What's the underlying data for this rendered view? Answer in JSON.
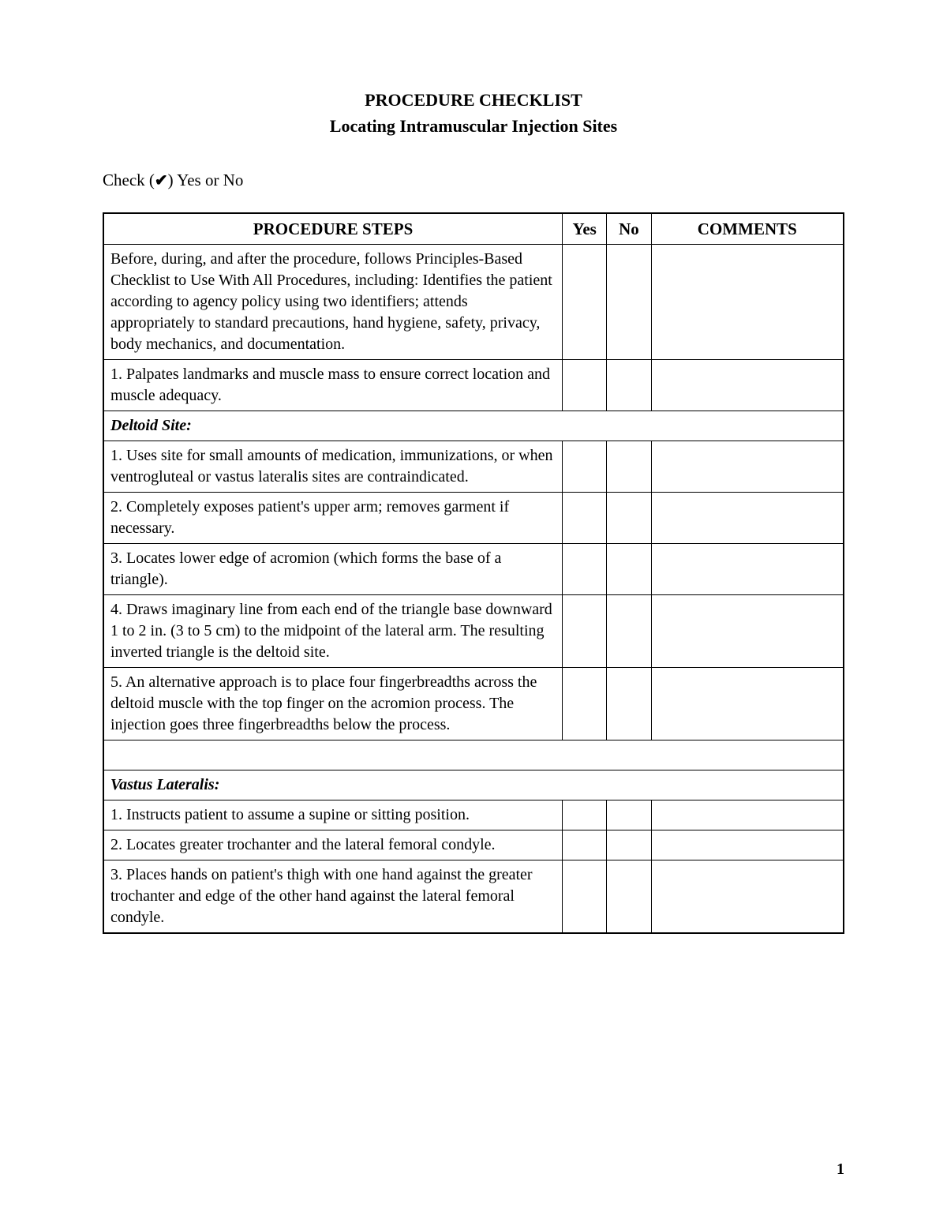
{
  "title": {
    "line1": "PROCEDURE CHECKLIST",
    "line2": "Locating Intramuscular Injection Sites"
  },
  "check_instruction": {
    "prefix": "Check (",
    "mark": "✔",
    "suffix": ") Yes or No"
  },
  "table": {
    "headers": {
      "steps": "PROCEDURE STEPS",
      "yes": "Yes",
      "no": "No",
      "comments": "COMMENTS"
    },
    "rows": [
      {
        "type": "step",
        "text": "Before, during, and after the procedure, follows Principles-Based Checklist to Use With All Procedures, including: Identifies the patient according to agency policy using two identifiers; attends appropriately to standard precautions, hand hygiene, safety, privacy, body mechanics, and documentation."
      },
      {
        "type": "step",
        "text": "1.   Palpates landmarks and muscle mass to ensure correct location and muscle adequacy."
      },
      {
        "type": "section",
        "text": "Deltoid Site:"
      },
      {
        "type": "step",
        "text": "1. Uses site for small amounts of medication, immunizations, or when ventrogluteal or vastus lateralis sites are contraindicated."
      },
      {
        "type": "step",
        "text": "2. Completely exposes patient's upper arm; removes garment if necessary."
      },
      {
        "type": "step",
        "text": "3. Locates lower edge of acromion (which forms the base of a triangle)."
      },
      {
        "type": "step",
        "text": "4. Draws imaginary line from each end of the triangle base downward 1 to 2 in. (3 to 5 cm) to the midpoint of the lateral arm. The resulting inverted triangle is the deltoid site."
      },
      {
        "type": "step",
        "text": "5. An alternative approach is to place four fingerbreadths across the deltoid muscle with the top finger on the acromion process. The injection goes three fingerbreadths below the process."
      },
      {
        "type": "spacer"
      },
      {
        "type": "section",
        "text": "Vastus Lateralis:"
      },
      {
        "type": "step",
        "text": "1. Instructs patient to assume a supine or sitting position."
      },
      {
        "type": "step",
        "text": "2. Locates greater trochanter and the lateral femoral condyle."
      },
      {
        "type": "step",
        "text": "3. Places hands on patient's thigh with one hand against the greater trochanter and edge of the other hand against the lateral femoral condyle."
      }
    ]
  },
  "page_number": "1",
  "colors": {
    "background": "#ffffff",
    "text": "#000000",
    "border": "#000000"
  }
}
